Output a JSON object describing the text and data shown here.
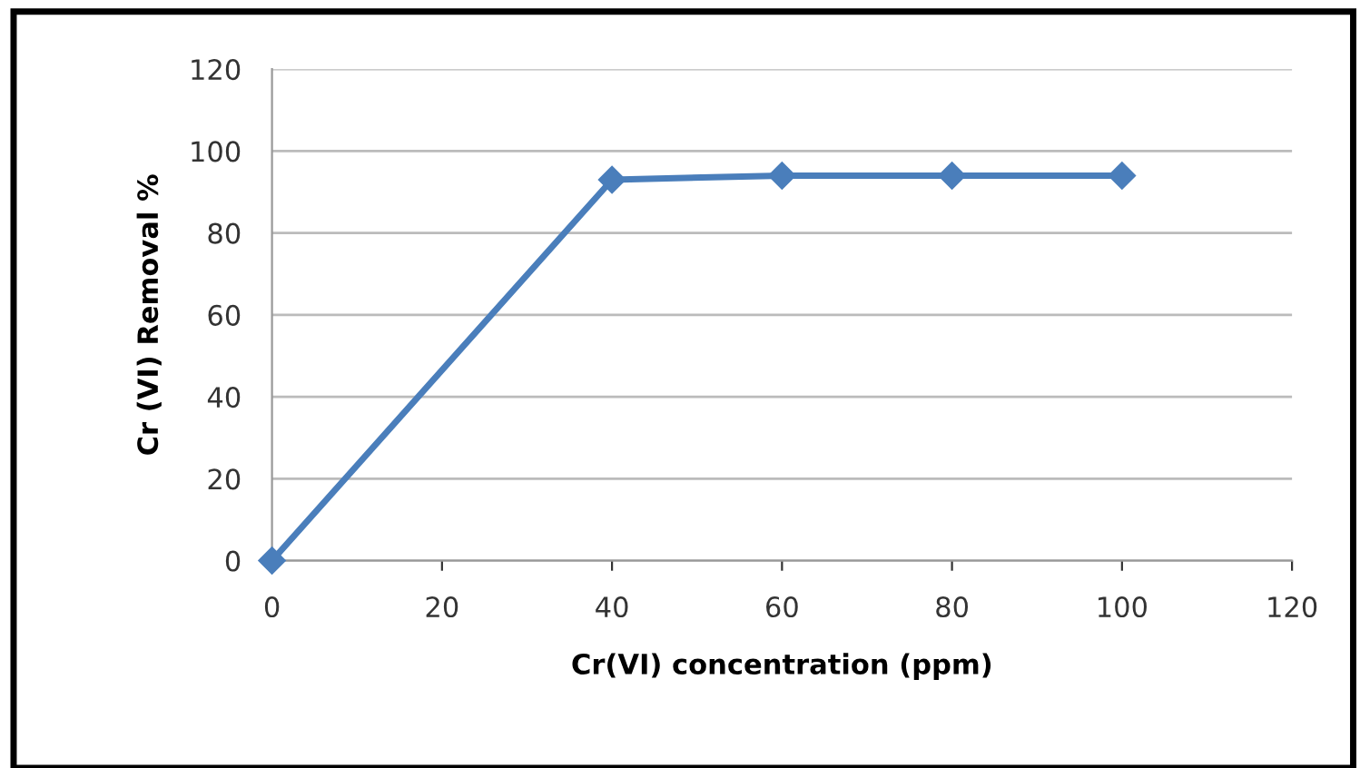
{
  "chart_data": {
    "type": "line",
    "xlabel": "Cr(VI) concentration (ppm)",
    "ylabel": "Cr (VI) Removal %",
    "x": [
      0,
      40,
      60,
      80,
      100
    ],
    "series": [
      {
        "color": "#4a7ebb",
        "values": [
          0,
          93,
          94,
          94,
          94
        ]
      }
    ],
    "xlim": [
      0,
      120
    ],
    "xticks": [
      0,
      20,
      40,
      60,
      80,
      100,
      120
    ],
    "ylim": [
      0,
      120
    ],
    "yticks": [
      0,
      20,
      40,
      60,
      80,
      100,
      120
    ],
    "grid": "y",
    "marker": "diamond",
    "line_style": "solid"
  }
}
